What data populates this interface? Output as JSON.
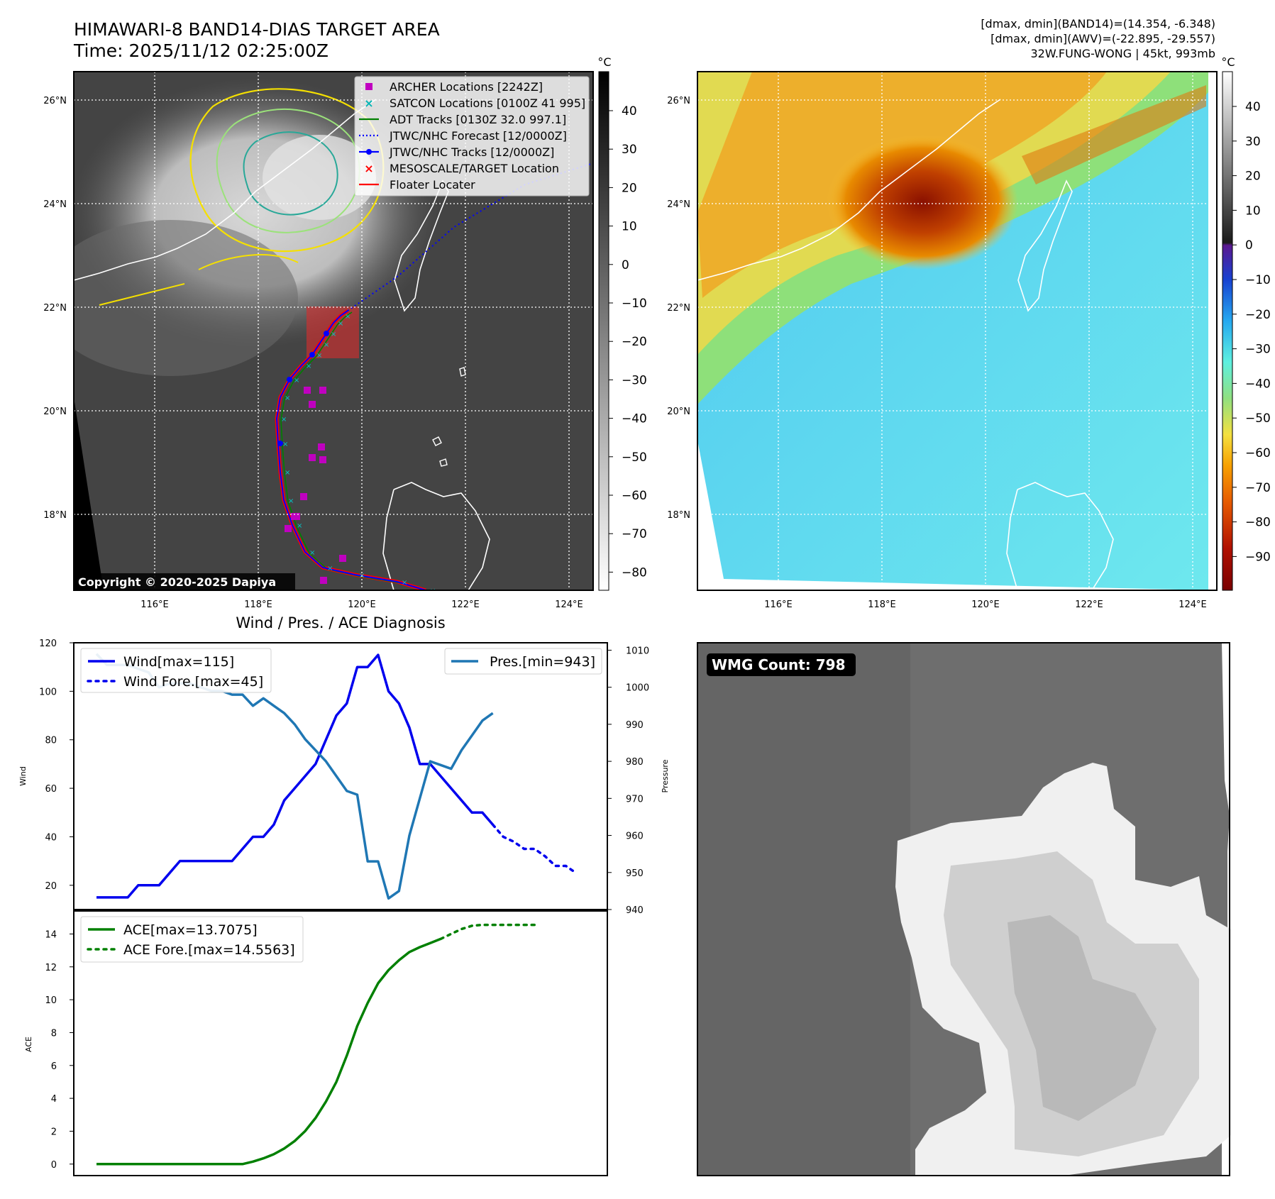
{
  "header": {
    "title_line1": "HIMAWARI-8 BAND14-DIAS TARGET AREA",
    "title_line2": "Time: 2025/11/12 02:25:00Z",
    "info_line1": "[dmax, dmin](BAND14)=(14.354, -6.348)",
    "info_line2": "[dmax, dmin](AWV)=(-22.895, -29.557)",
    "info_line3": "32W.FUNG-WONG | 45kt, 993mb"
  },
  "map": {
    "lon_ticks": [
      "116°E",
      "118°E",
      "120°E",
      "122°E",
      "124°E"
    ],
    "lat_ticks": [
      "26°N",
      "24°N",
      "22°N",
      "20°N",
      "18°N"
    ],
    "copyright": "Copyright © 2020-2025 Dapiya",
    "colorbar_unit": "°C",
    "gray_colorbar_ticks": [
      "40",
      "30",
      "20",
      "10",
      "0",
      "−10",
      "−20",
      "−30",
      "−40",
      "−50",
      "−60",
      "−70",
      "−80"
    ],
    "color_colorbar_ticks": [
      "40",
      "30",
      "20",
      "10",
      "0",
      "−10",
      "−20",
      "−30",
      "−40",
      "−50",
      "−60",
      "−70",
      "−80",
      "−90"
    ],
    "legend": [
      {
        "label": "ARCHER Locations [2242Z]",
        "marker": "square",
        "color": "#c000c0"
      },
      {
        "label": "SATCON Locations [0100Z 41 995]",
        "marker": "x",
        "color": "#00b4b4"
      },
      {
        "label": "ADT Tracks [0130Z 32.0 997.1]",
        "marker": "line",
        "color": "#008000"
      },
      {
        "label": "JTWC/NHC Forecast [12/0000Z]",
        "marker": "dotted",
        "color": "#0000ff"
      },
      {
        "label": "JTWC/NHC Tracks [12/0000Z]",
        "marker": "line-dot",
        "color": "#0000ff"
      },
      {
        "label": "MESOSCALE/TARGET Location",
        "marker": "x",
        "color": "#ff0000"
      },
      {
        "label": "Floater Locater",
        "marker": "line",
        "color": "#ff0000"
      }
    ]
  },
  "diagnosis": {
    "title": "Wind / Pres. / ACE Diagnosis",
    "wind_ylabel": "Wind",
    "pres_ylabel": "Pressure",
    "ace_ylabel": "ACE",
    "legend_wind": "Wind[max=115]",
    "legend_wind_fore": "Wind Fore.[max=45]",
    "legend_pres": "Pres.[min=943]",
    "legend_ace": "ACE[max=13.7075]",
    "legend_ace_fore": "ACE Fore.[max=14.5563]"
  },
  "wmg": {
    "label": "WMG Count: 798"
  },
  "colors": {
    "wind": "#0000ee",
    "pres": "#1f77b4",
    "ace": "#008000"
  },
  "chart_data": [
    {
      "type": "line",
      "name": "wind",
      "ylim": [
        10,
        120
      ],
      "yticks": [
        20,
        40,
        60,
        80,
        100,
        120
      ],
      "series": [
        {
          "name": "Wind[max=115]",
          "values": [
            15,
            15,
            15,
            15,
            20,
            20,
            20,
            25,
            30,
            30,
            30,
            30,
            30,
            30,
            35,
            40,
            40,
            45,
            55,
            60,
            65,
            70,
            80,
            90,
            95,
            110,
            110,
            115,
            100,
            95,
            85,
            70,
            70,
            65,
            60,
            55,
            50,
            50,
            45
          ]
        },
        {
          "name": "Wind Fore.[max=45]",
          "start_index": 38,
          "values": [
            45,
            40,
            38,
            35,
            35,
            32,
            28,
            28,
            25
          ]
        }
      ]
    },
    {
      "type": "line",
      "name": "pressure",
      "ylim": [
        940,
        1012
      ],
      "yticks": [
        940,
        950,
        960,
        970,
        980,
        990,
        1000,
        1010
      ],
      "series": [
        {
          "name": "Pres.[min=943]",
          "values": [
            1009,
            1006,
            1006,
            1006,
            1005,
            1004,
            1000,
            1001,
            1001,
            1001,
            1000,
            999,
            999,
            998,
            998,
            995,
            997,
            995,
            993,
            990,
            986,
            983,
            980,
            976,
            972,
            971,
            953,
            953,
            943,
            945,
            960,
            970,
            980,
            979,
            978,
            983,
            987,
            991,
            993
          ]
        }
      ]
    },
    {
      "type": "line",
      "name": "ace",
      "ylim": [
        -0.7,
        15.4
      ],
      "yticks": [
        0,
        2,
        4,
        6,
        8,
        10,
        12,
        14
      ],
      "series": [
        {
          "name": "ACE[max=13.7075]",
          "values": [
            0,
            0,
            0,
            0,
            0,
            0,
            0,
            0,
            0,
            0,
            0,
            0,
            0,
            0,
            0,
            0.15,
            0.35,
            0.6,
            0.95,
            1.4,
            2.0,
            2.8,
            3.8,
            5.0,
            6.6,
            8.4,
            9.8,
            11.0,
            11.8,
            12.4,
            12.9,
            13.2,
            13.45,
            13.7
          ]
        },
        {
          "name": "ACE Fore.[max=14.5563]",
          "start_index": 33,
          "values": [
            13.7,
            14.0,
            14.3,
            14.5,
            14.556,
            14.556,
            14.556,
            14.556,
            14.556,
            14.556
          ]
        }
      ]
    }
  ]
}
